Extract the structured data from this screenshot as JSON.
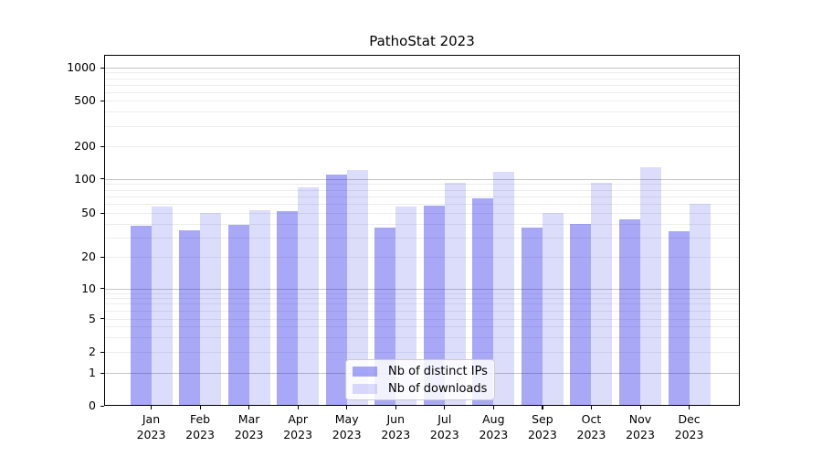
{
  "figure": {
    "title": "PathoStat 2023",
    "background": "#ffffff"
  },
  "chart_data": {
    "type": "bar",
    "title": "PathoStat 2023",
    "categories": [
      "Jan 2023",
      "Feb 2023",
      "Mar 2023",
      "Apr 2023",
      "May 2023",
      "Jun 2023",
      "Jul 2023",
      "Aug 2023",
      "Sep 2023",
      "Oct 2023",
      "Nov 2023",
      "Dec 2023"
    ],
    "series": [
      {
        "name": "Nb of distinct IPs",
        "color": "rgba(20,20,230,0.37)",
        "values": [
          38,
          35,
          39,
          52,
          109,
          37,
          58,
          67,
          37,
          40,
          44,
          34
        ]
      },
      {
        "name": "Nb of downloads",
        "color": "rgba(20,20,230,0.15)",
        "values": [
          57,
          50,
          53,
          84,
          121,
          57,
          92,
          116,
          50,
          92,
          127,
          60
        ]
      }
    ],
    "xlabel": "",
    "ylabel": "",
    "yscale": "symlog",
    "ylim": [
      0,
      1000
    ],
    "yticks": [
      0,
      1,
      2,
      5,
      10,
      20,
      50,
      100,
      200,
      500,
      1000
    ],
    "minor_gridlines": [
      2,
      3,
      4,
      5,
      6,
      7,
      8,
      9,
      20,
      30,
      40,
      50,
      60,
      70,
      80,
      90,
      200,
      300,
      400,
      500,
      600,
      700,
      800,
      900
    ],
    "major_gridlines": [
      1,
      10,
      100,
      1000
    ],
    "grid": "horizontal",
    "legend_position": "lower center"
  },
  "legend": {
    "items": [
      {
        "label": "Nb of distinct IPs"
      },
      {
        "label": "Nb of downloads"
      }
    ]
  },
  "colors": {
    "major_grid": "#c5c5c5",
    "minor_grid": "#ededed",
    "spine": "#000000",
    "distinct_ips_bar": "rgba(20,20,230,0.37)",
    "downloads_bar": "rgba(20,20,230,0.15)"
  }
}
